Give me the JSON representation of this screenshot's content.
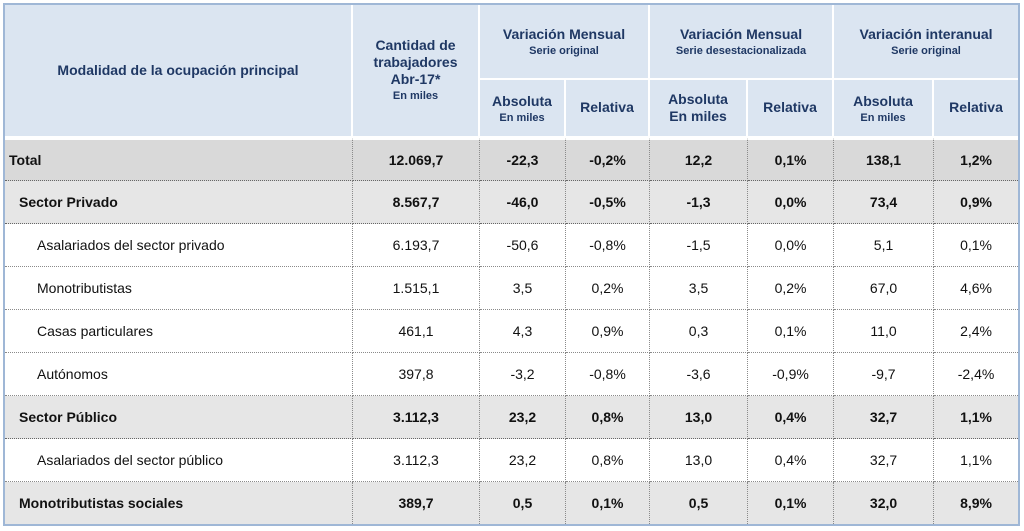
{
  "header": {
    "modalidad": "Modalidad de la ocupación principal",
    "cantidad_line1": "Cantidad de",
    "cantidad_line2": "trabajadores",
    "cantidad_line3": "Abr-17*",
    "cantidad_unit": "En miles",
    "var_mensual_orig": "Variación Mensual",
    "var_mensual_orig_sub": "Serie original",
    "var_mensual_desest": "Variación Mensual",
    "var_mensual_desest_sub": "Serie desestacionalizada",
    "var_interanual": "Variación interanual",
    "var_interanual_sub": "Serie original",
    "absoluta": "Absoluta",
    "en_miles": "En miles",
    "relativa": "Relativa"
  },
  "rows": [
    {
      "label": "Total",
      "cantidad": "12.069,7",
      "mo_abs": "-22,3",
      "mo_rel": "-0,2%",
      "md_abs": "12,2",
      "md_rel": "0,1%",
      "ia_abs": "138,1",
      "ia_rel": "1,2%"
    },
    {
      "label": "Sector Privado",
      "cantidad": "8.567,7",
      "mo_abs": "-46,0",
      "mo_rel": "-0,5%",
      "md_abs": "-1,3",
      "md_rel": "0,0%",
      "ia_abs": "73,4",
      "ia_rel": "0,9%"
    },
    {
      "label": "Asalariados del sector privado",
      "cantidad": "6.193,7",
      "mo_abs": "-50,6",
      "mo_rel": "-0,8%",
      "md_abs": "-1,5",
      "md_rel": "0,0%",
      "ia_abs": "5,1",
      "ia_rel": "0,1%"
    },
    {
      "label": "Monotributistas",
      "cantidad": "1.515,1",
      "mo_abs": "3,5",
      "mo_rel": "0,2%",
      "md_abs": "3,5",
      "md_rel": "0,2%",
      "ia_abs": "67,0",
      "ia_rel": "4,6%"
    },
    {
      "label": "Casas particulares",
      "cantidad": "461,1",
      "mo_abs": "4,3",
      "mo_rel": "0,9%",
      "md_abs": "0,3",
      "md_rel": "0,1%",
      "ia_abs": "11,0",
      "ia_rel": "2,4%"
    },
    {
      "label": "Autónomos",
      "cantidad": "397,8",
      "mo_abs": "-3,2",
      "mo_rel": "-0,8%",
      "md_abs": "-3,6",
      "md_rel": "-0,9%",
      "ia_abs": "-9,7",
      "ia_rel": "-2,4%"
    },
    {
      "label": "Sector Público",
      "cantidad": "3.112,3",
      "mo_abs": "23,2",
      "mo_rel": "0,8%",
      "md_abs": "13,0",
      "md_rel": "0,4%",
      "ia_abs": "32,7",
      "ia_rel": "1,1%"
    },
    {
      "label": "Asalariados del sector público",
      "cantidad": "3.112,3",
      "mo_abs": "23,2",
      "mo_rel": "0,8%",
      "md_abs": "13,0",
      "md_rel": "0,4%",
      "ia_abs": "32,7",
      "ia_rel": "1,1%"
    },
    {
      "label": "Monotributistas sociales",
      "cantidad": "389,7",
      "mo_abs": "0,5",
      "mo_rel": "0,1%",
      "md_abs": "0,5",
      "md_rel": "0,1%",
      "ia_abs": "32,0",
      "ia_rel": "8,9%"
    }
  ]
}
